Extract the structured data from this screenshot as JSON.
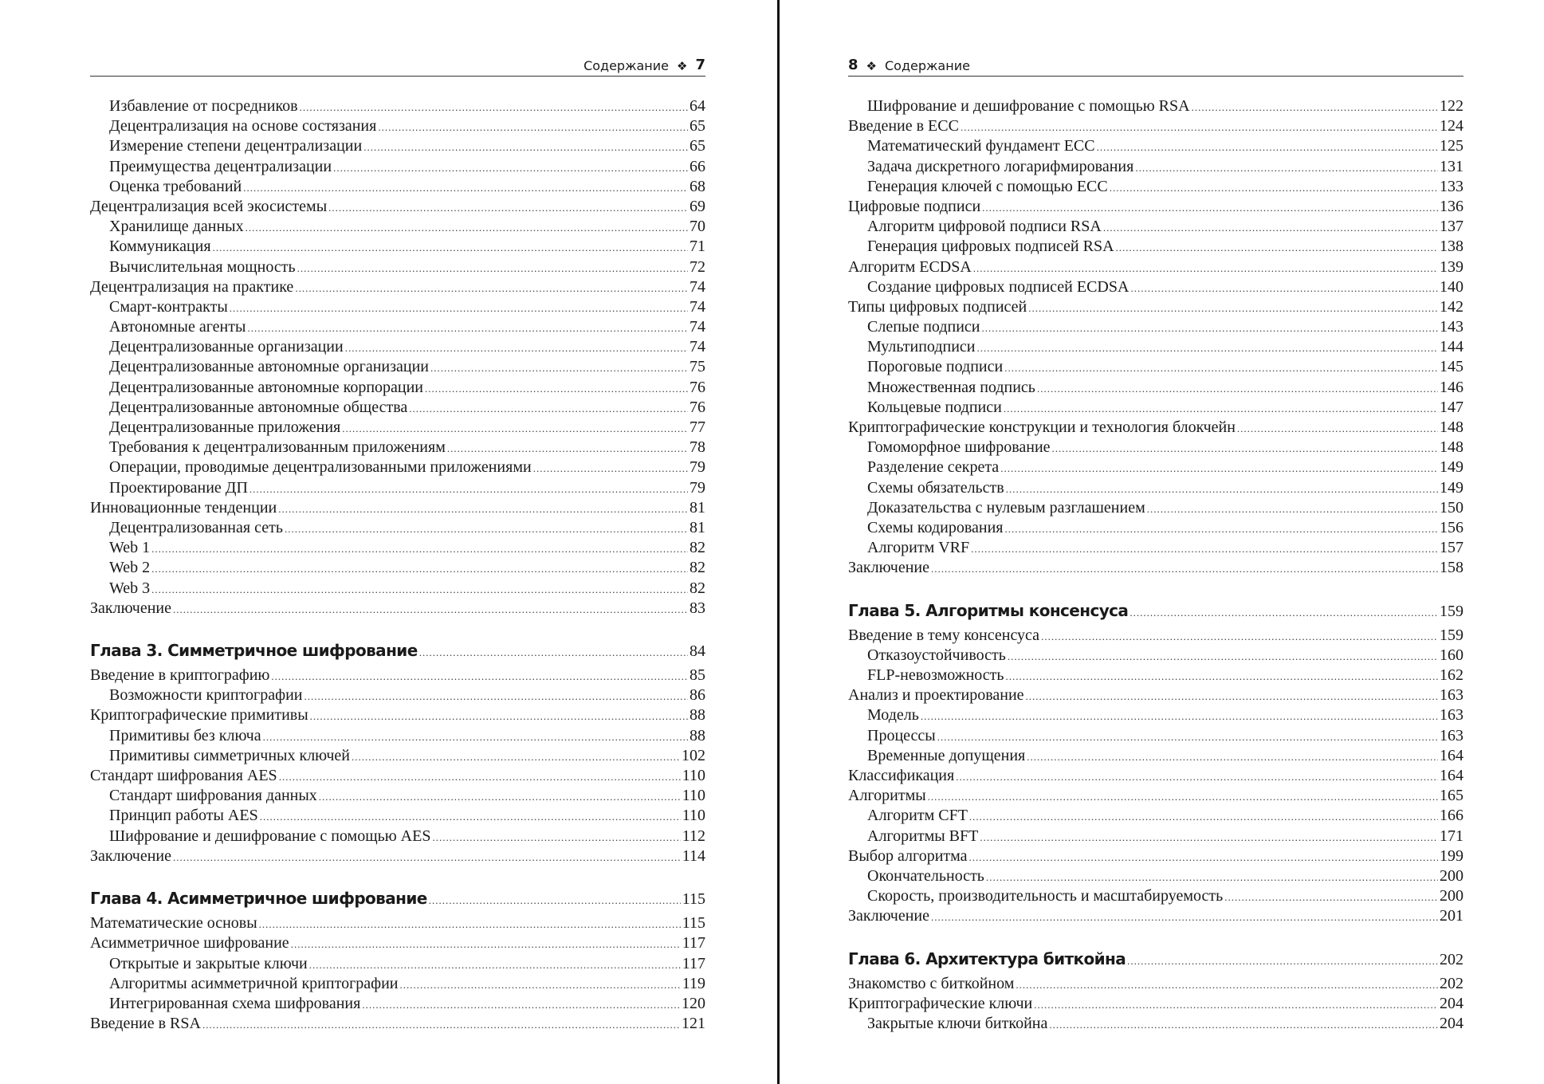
{
  "left_page": {
    "header": {
      "title": "Содержание",
      "ornament": "❖",
      "page_number": "7"
    },
    "entries": [
      {
        "level": 2,
        "title": "Избавление от посредников",
        "page": "64"
      },
      {
        "level": 2,
        "title": "Децентрализация на основе состязания",
        "page": "65"
      },
      {
        "level": 2,
        "title": "Измерение степени децентрализации",
        "page": "65"
      },
      {
        "level": 2,
        "title": "Преимущества децентрализации",
        "page": "66"
      },
      {
        "level": 2,
        "title": "Оценка требований",
        "page": "68"
      },
      {
        "level": 1,
        "title": "Децентрализация всей экосистемы",
        "page": "69"
      },
      {
        "level": 2,
        "title": "Хранилище данных",
        "page": "70"
      },
      {
        "level": 2,
        "title": "Коммуникация",
        "page": "71"
      },
      {
        "level": 2,
        "title": "Вычислительная мощность",
        "page": "72"
      },
      {
        "level": 1,
        "title": "Децентрализация на практике",
        "page": "74"
      },
      {
        "level": 2,
        "title": "Смарт-контракты",
        "page": "74"
      },
      {
        "level": 2,
        "title": "Автономные агенты",
        "page": "74"
      },
      {
        "level": 2,
        "title": "Децентрализованные организации",
        "page": "74"
      },
      {
        "level": 2,
        "title": "Децентрализованные автономные организации",
        "page": "75"
      },
      {
        "level": 2,
        "title": "Децентрализованные автономные корпорации",
        "page": "76"
      },
      {
        "level": 2,
        "title": "Децентрализованные автономные общества",
        "page": "76"
      },
      {
        "level": 2,
        "title": "Децентрализованные приложения",
        "page": "77"
      },
      {
        "level": 2,
        "title": "Требования к децентрализованным приложениям",
        "page": "78"
      },
      {
        "level": 2,
        "title": "Операции, проводимые децентрализованными приложениями",
        "page": "79"
      },
      {
        "level": 2,
        "title": "Проектирование ДП",
        "page": "79"
      },
      {
        "level": 1,
        "title": "Инновационные тенденции",
        "page": "81"
      },
      {
        "level": 2,
        "title": "Децентрализованная сеть",
        "page": "81"
      },
      {
        "level": 2,
        "title": "Web 1",
        "page": "82"
      },
      {
        "level": 2,
        "title": "Web 2",
        "page": "82"
      },
      {
        "level": 2,
        "title": "Web 3",
        "page": "82"
      },
      {
        "level": 1,
        "title": "Заключение",
        "page": "83"
      },
      {
        "level": 0,
        "title": "Глава 3. Симметричное шифрование",
        "page": "84"
      },
      {
        "level": 1,
        "title": "Введение в криптографию",
        "page": "85"
      },
      {
        "level": 2,
        "title": "Возможности криптографии",
        "page": "86"
      },
      {
        "level": 1,
        "title": "Криптографические примитивы",
        "page": "88"
      },
      {
        "level": 2,
        "title": "Примитивы без ключа",
        "page": "88"
      },
      {
        "level": 2,
        "title": "Примитивы симметричных ключей",
        "page": "102"
      },
      {
        "level": 1,
        "title": "Стандарт шифрования AES",
        "page": "110"
      },
      {
        "level": 2,
        "title": "Стандарт шифрования данных",
        "page": "110"
      },
      {
        "level": 2,
        "title": "Принцип работы AES",
        "page": "110"
      },
      {
        "level": 2,
        "title": "Шифрование и дешифрование с помощью AES",
        "page": "112"
      },
      {
        "level": 1,
        "title": "Заключение",
        "page": "114"
      },
      {
        "level": 0,
        "title": "Глава 4. Асимметричное шифрование",
        "page": "115"
      },
      {
        "level": 1,
        "title": "Математические основы",
        "page": "115"
      },
      {
        "level": 1,
        "title": "Асимметричное шифрование",
        "page": "117"
      },
      {
        "level": 2,
        "title": "Открытые и закрытые ключи",
        "page": "117"
      },
      {
        "level": 2,
        "title": "Алгоритмы асимметричной криптографии",
        "page": "119"
      },
      {
        "level": 2,
        "title": "Интегрированная схема шифрования",
        "page": "120"
      },
      {
        "level": 1,
        "title": "Введение в RSA",
        "page": "121"
      }
    ]
  },
  "right_page": {
    "header": {
      "title": "Содержание",
      "ornament": "❖",
      "page_number": "8"
    },
    "entries": [
      {
        "level": 2,
        "title": "Шифрование и дешифрование с помощью RSA",
        "page": "122"
      },
      {
        "level": 1,
        "title": "Введение в ECC",
        "page": "124"
      },
      {
        "level": 2,
        "title": "Математический фундамент ECC",
        "page": "125"
      },
      {
        "level": 2,
        "title": "Задача дискретного логарифмирования",
        "page": "131"
      },
      {
        "level": 2,
        "title": "Генерация ключей с помощью ECC",
        "page": "133"
      },
      {
        "level": 1,
        "title": "Цифровые подписи",
        "page": "136"
      },
      {
        "level": 2,
        "title": "Алгоритм цифровой подписи RSA",
        "page": "137"
      },
      {
        "level": 2,
        "title": "Генерация цифровых подписей RSA",
        "page": "138"
      },
      {
        "level": 1,
        "title": "Алгоритм ECDSA",
        "page": "139"
      },
      {
        "level": 2,
        "title": "Создание цифровых подписей ECDSA",
        "page": "140"
      },
      {
        "level": 1,
        "title": "Типы цифровых подписей",
        "page": "142"
      },
      {
        "level": 2,
        "title": "Слепые подписи",
        "page": "143"
      },
      {
        "level": 2,
        "title": "Мультиподписи",
        "page": "144"
      },
      {
        "level": 2,
        "title": "Пороговые подписи",
        "page": "145"
      },
      {
        "level": 2,
        "title": "Множественная подпись",
        "page": "146"
      },
      {
        "level": 2,
        "title": "Кольцевые подписи",
        "page": "147"
      },
      {
        "level": 1,
        "title": "Криптографические конструкции и технология блокчейн",
        "page": "148"
      },
      {
        "level": 2,
        "title": "Гомоморфное шифрование",
        "page": "148"
      },
      {
        "level": 2,
        "title": "Разделение секрета",
        "page": "149"
      },
      {
        "level": 2,
        "title": "Схемы обязательств",
        "page": "149"
      },
      {
        "level": 2,
        "title": "Доказательства с нулевым разглашением",
        "page": "150"
      },
      {
        "level": 2,
        "title": "Схемы кодирования",
        "page": "156"
      },
      {
        "level": 2,
        "title": "Алгоритм VRF",
        "page": "157"
      },
      {
        "level": 1,
        "title": "Заключение",
        "page": "158"
      },
      {
        "level": 0,
        "title": "Глава 5. Алгоритмы консенсуса",
        "page": "159"
      },
      {
        "level": 1,
        "title": "Введение в тему консенсуса",
        "page": "159"
      },
      {
        "level": 2,
        "title": "Отказоустойчивость",
        "page": "160"
      },
      {
        "level": 2,
        "title": "FLP-невозможность",
        "page": "162"
      },
      {
        "level": 1,
        "title": "Анализ и проектирование",
        "page": "163"
      },
      {
        "level": 2,
        "title": "Модель",
        "page": "163"
      },
      {
        "level": 2,
        "title": "Процессы",
        "page": "163"
      },
      {
        "level": 2,
        "title": "Временные допущения",
        "page": "164"
      },
      {
        "level": 1,
        "title": "Классификация",
        "page": "164"
      },
      {
        "level": 1,
        "title": "Алгоритмы",
        "page": "165"
      },
      {
        "level": 2,
        "title": "Алгоритм CFT",
        "page": "166"
      },
      {
        "level": 2,
        "title": "Алгоритмы BFT",
        "page": "171"
      },
      {
        "level": 1,
        "title": "Выбор алгоритма",
        "page": "199"
      },
      {
        "level": 2,
        "title": "Окончательность",
        "page": "200"
      },
      {
        "level": 2,
        "title": "Скорость, производительность и масштабируемость",
        "page": "200"
      },
      {
        "level": 1,
        "title": "Заключение",
        "page": "201"
      },
      {
        "level": 0,
        "title": "Глава 6. Архитектура биткойна",
        "page": "202"
      },
      {
        "level": 1,
        "title": "Знакомство с биткойном",
        "page": "202"
      },
      {
        "level": 1,
        "title": "Криптографические ключи",
        "page": "204"
      },
      {
        "level": 2,
        "title": "Закрытые ключи биткойна",
        "page": "204"
      }
    ]
  }
}
